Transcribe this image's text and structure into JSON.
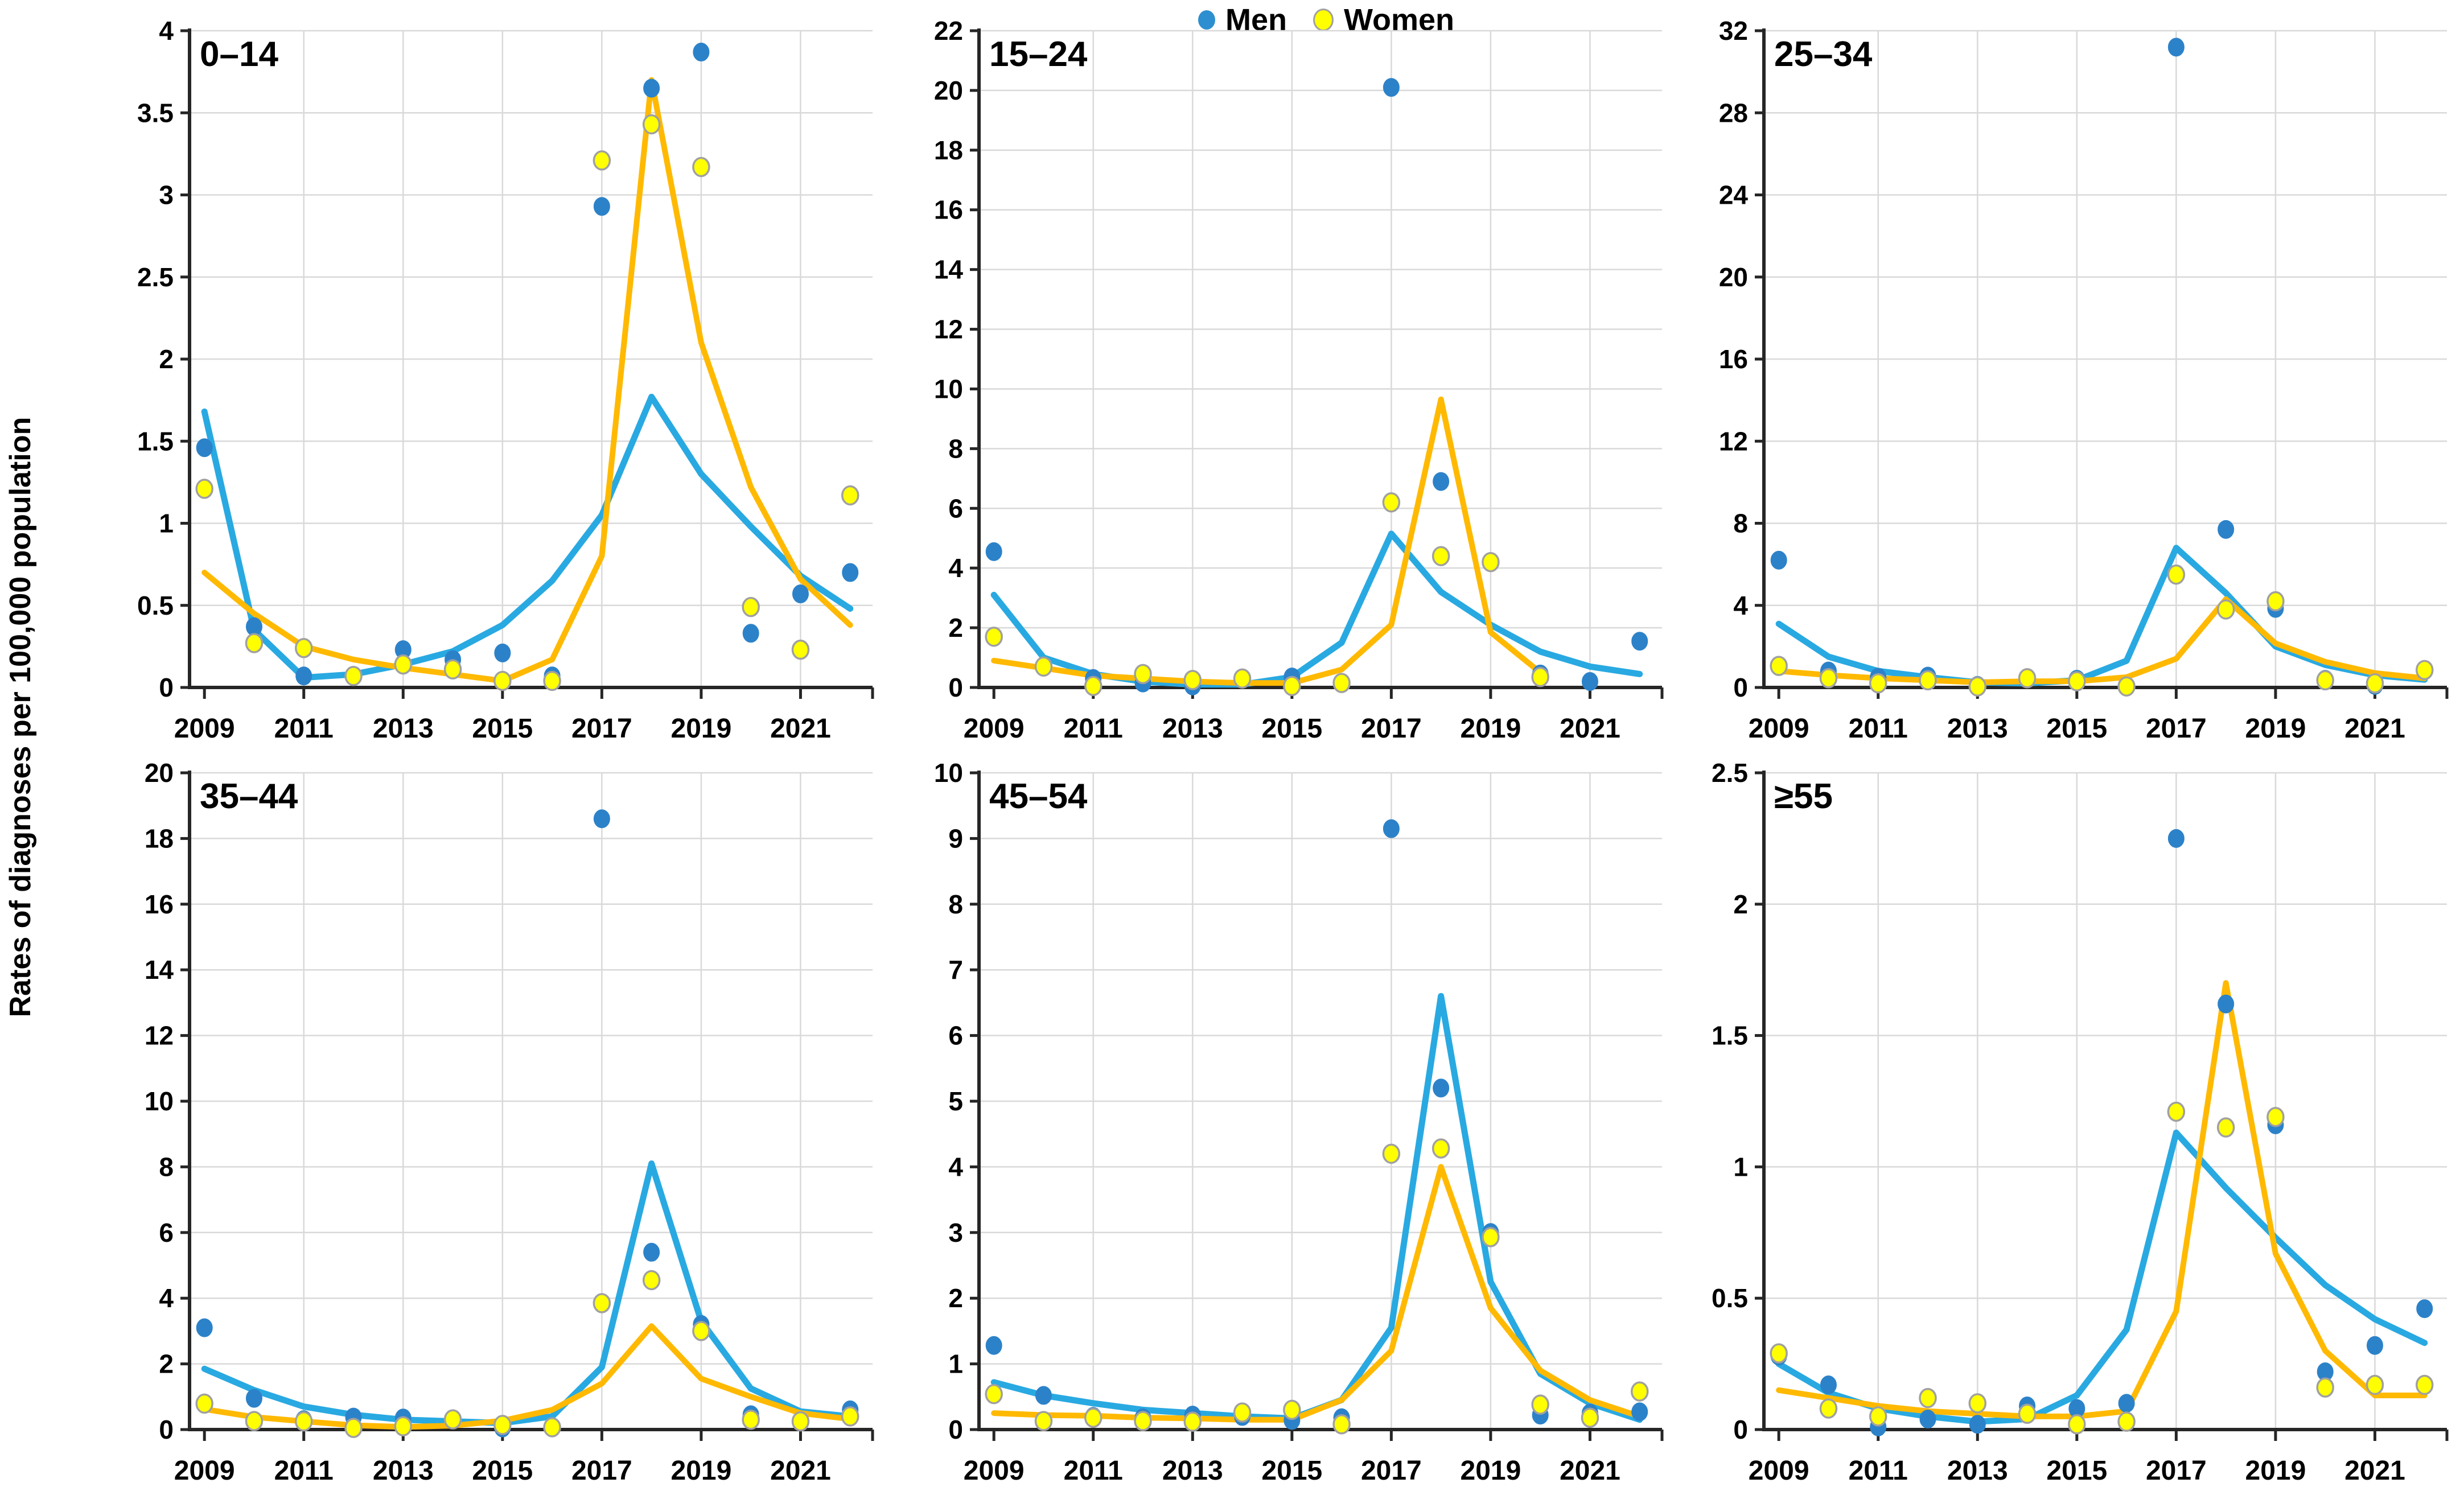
{
  "figure": {
    "ylabel": "Rates of diagnoses per 100,000 population",
    "legend": {
      "men_label": "Men",
      "women_label": "Women"
    },
    "colors": {
      "men_line": "#29A9E1",
      "men_dot": "#2C82C9",
      "women_line": "#FFB900",
      "women_dot": "#FFFF00",
      "women_dot_stroke": "#A0A0A0",
      "grid": "#D9D9D9",
      "axis": "#262626",
      "text": "#000000"
    }
  },
  "chart_data": [
    {
      "type": "scatter",
      "title": "0–14",
      "years": [
        2009,
        2010,
        2011,
        2012,
        2013,
        2014,
        2015,
        2016,
        2017,
        2018,
        2019,
        2020,
        2021,
        2022
      ],
      "xtick_labels": [
        "2009",
        "2011",
        "2013",
        "2015",
        "2017",
        "2019",
        "2021"
      ],
      "ylim": [
        0,
        4
      ],
      "ytick_step": 0.5,
      "series": [
        {
          "name": "Men",
          "role": "points",
          "values": [
            1.46,
            0.37,
            0.07,
            0.07,
            0.23,
            0.17,
            0.21,
            0.07,
            2.93,
            3.65,
            3.87,
            0.33,
            0.57,
            0.7
          ]
        },
        {
          "name": "Women",
          "role": "points",
          "values": [
            1.21,
            0.27,
            0.24,
            0.07,
            0.14,
            0.11,
            0.04,
            0.04,
            3.21,
            3.43,
            3.17,
            0.49,
            0.23,
            1.17
          ]
        },
        {
          "name": "Men fitted",
          "role": "line",
          "values": [
            1.68,
            0.35,
            0.06,
            0.08,
            0.14,
            0.22,
            0.38,
            0.65,
            1.05,
            1.77,
            1.3,
            0.98,
            0.68,
            0.48
          ]
        },
        {
          "name": "Women fitted",
          "role": "line",
          "values": [
            0.7,
            0.45,
            0.25,
            0.17,
            0.12,
            0.08,
            0.04,
            0.17,
            0.8,
            3.7,
            2.1,
            1.22,
            0.66,
            0.38
          ]
        }
      ]
    },
    {
      "type": "scatter",
      "title": "15–24",
      "years": [
        2009,
        2010,
        2011,
        2012,
        2013,
        2014,
        2015,
        2016,
        2017,
        2018,
        2019,
        2020,
        2021,
        2022
      ],
      "xtick_labels": [
        "2009",
        "2011",
        "2013",
        "2015",
        "2017",
        "2019",
        "2021"
      ],
      "ylim": [
        0,
        22
      ],
      "ytick_step": 2,
      "series": [
        {
          "name": "Men",
          "role": "points",
          "values": [
            4.55,
            0.7,
            0.3,
            0.15,
            0.05,
            0.3,
            0.35,
            0.15,
            20.1,
            6.9,
            4.2,
            0.45,
            0.2,
            1.55
          ]
        },
        {
          "name": "Women",
          "role": "points",
          "values": [
            1.7,
            0.7,
            0.05,
            0.45,
            0.25,
            0.3,
            0.05,
            0.15,
            6.2,
            4.4,
            4.2,
            0.35,
            null,
            null
          ]
        },
        {
          "name": "Men fitted",
          "role": "line",
          "values": [
            3.1,
            1.0,
            0.45,
            0.2,
            0.1,
            0.1,
            0.35,
            1.5,
            5.15,
            3.2,
            2.1,
            1.2,
            0.7,
            0.45
          ]
        },
        {
          "name": "Women fitted",
          "role": "line",
          "values": [
            0.9,
            0.65,
            0.4,
            0.3,
            0.2,
            0.15,
            0.15,
            0.6,
            2.1,
            9.65,
            1.85,
            0.5,
            null,
            null
          ]
        }
      ]
    },
    {
      "type": "scatter",
      "title": "25–34",
      "years": [
        2009,
        2010,
        2011,
        2012,
        2013,
        2014,
        2015,
        2016,
        2017,
        2018,
        2019,
        2020,
        2021,
        2022
      ],
      "xtick_labels": [
        "2009",
        "2011",
        "2013",
        "2015",
        "2017",
        "2019",
        "2021"
      ],
      "ylim": [
        0,
        32
      ],
      "ytick_step": 4,
      "series": [
        {
          "name": "Men",
          "role": "points",
          "values": [
            6.2,
            0.8,
            0.5,
            0.55,
            0.1,
            0.45,
            0.4,
            0.05,
            31.2,
            7.7,
            3.85,
            0.4,
            0.1,
            0.85
          ]
        },
        {
          "name": "Women",
          "role": "points",
          "values": [
            1.05,
            0.45,
            0.2,
            0.35,
            0.05,
            0.45,
            0.3,
            0.05,
            5.5,
            3.8,
            4.2,
            0.35,
            0.2,
            0.85
          ]
        },
        {
          "name": "Men fitted",
          "role": "line",
          "values": [
            3.1,
            1.5,
            0.8,
            0.5,
            0.25,
            0.2,
            0.35,
            1.3,
            6.8,
            4.6,
            2.0,
            1.1,
            0.6,
            0.38
          ]
        },
        {
          "name": "Women fitted",
          "role": "line",
          "values": [
            0.8,
            0.6,
            0.45,
            0.35,
            0.25,
            0.3,
            0.3,
            0.5,
            1.4,
            4.3,
            2.15,
            1.25,
            0.7,
            0.45
          ]
        }
      ]
    },
    {
      "type": "scatter",
      "title": "35–44",
      "years": [
        2009,
        2010,
        2011,
        2012,
        2013,
        2014,
        2015,
        2016,
        2017,
        2018,
        2019,
        2020,
        2021,
        2022
      ],
      "xtick_labels": [
        "2009",
        "2011",
        "2013",
        "2015",
        "2017",
        "2019",
        "2021"
      ],
      "ylim": [
        0,
        20
      ],
      "ytick_step": 2,
      "series": [
        {
          "name": "Men",
          "role": "points",
          "values": [
            3.1,
            0.95,
            0.3,
            0.38,
            0.35,
            0.31,
            0.05,
            0.05,
            18.6,
            5.4,
            3.2,
            0.45,
            0.25,
            0.6
          ]
        },
        {
          "name": "Women",
          "role": "points",
          "values": [
            0.79,
            0.26,
            0.25,
            0.05,
            0.1,
            0.31,
            0.14,
            0.07,
            3.85,
            4.55,
            3.0,
            0.3,
            0.25,
            0.4
          ]
        },
        {
          "name": "Men fitted",
          "role": "line",
          "values": [
            1.85,
            1.2,
            0.7,
            0.45,
            0.3,
            0.25,
            0.2,
            0.4,
            1.9,
            8.1,
            3.3,
            1.25,
            0.55,
            0.4
          ]
        },
        {
          "name": "Women fitted",
          "role": "line",
          "values": [
            0.62,
            0.38,
            0.25,
            0.13,
            0.08,
            0.12,
            0.27,
            0.6,
            1.4,
            3.15,
            1.55,
            1.0,
            0.5,
            0.32
          ]
        }
      ]
    },
    {
      "type": "scatter",
      "title": "45–54",
      "years": [
        2009,
        2010,
        2011,
        2012,
        2013,
        2014,
        2015,
        2016,
        2017,
        2018,
        2019,
        2020,
        2021,
        2022
      ],
      "xtick_labels": [
        "2009",
        "2011",
        "2013",
        "2015",
        "2017",
        "2019",
        "2021"
      ],
      "ylim": [
        0,
        10
      ],
      "ytick_step": 1,
      "series": [
        {
          "name": "Men",
          "role": "points",
          "values": [
            1.28,
            0.52,
            0.2,
            0.18,
            0.22,
            0.2,
            0.14,
            0.18,
            9.15,
            5.2,
            3.0,
            0.22,
            0.25,
            0.27
          ]
        },
        {
          "name": "Women",
          "role": "points",
          "values": [
            0.54,
            0.13,
            0.18,
            0.13,
            0.12,
            0.26,
            0.3,
            0.08,
            4.2,
            4.28,
            2.93,
            0.38,
            0.18,
            0.58
          ]
        },
        {
          "name": "Men fitted",
          "role": "line",
          "values": [
            0.72,
            0.52,
            0.4,
            0.3,
            0.25,
            0.2,
            0.17,
            0.45,
            1.55,
            6.6,
            2.25,
            0.85,
            0.4,
            0.15
          ]
        },
        {
          "name": "Women fitted",
          "role": "line",
          "values": [
            0.25,
            0.22,
            0.21,
            0.18,
            0.17,
            0.15,
            0.15,
            0.45,
            1.2,
            4.0,
            1.85,
            0.9,
            0.45,
            0.2
          ]
        }
      ]
    },
    {
      "type": "scatter",
      "title": "≥55",
      "years": [
        2009,
        2010,
        2011,
        2012,
        2013,
        2014,
        2015,
        2016,
        2017,
        2018,
        2019,
        2020,
        2021,
        2022
      ],
      "xtick_labels": [
        "2009",
        "2011",
        "2013",
        "2015",
        "2017",
        "2019",
        "2021"
      ],
      "ylim": [
        0,
        2.5
      ],
      "ytick_step": 0.5,
      "series": [
        {
          "name": "Men",
          "role": "points",
          "values": [
            0.28,
            0.17,
            0.01,
            0.04,
            0.02,
            0.09,
            0.08,
            0.1,
            2.25,
            1.62,
            1.16,
            0.22,
            0.32,
            0.46
          ]
        },
        {
          "name": "Women",
          "role": "points",
          "values": [
            0.29,
            0.08,
            0.05,
            0.12,
            0.1,
            0.06,
            0.02,
            0.03,
            1.21,
            1.15,
            1.19,
            0.16,
            0.17,
            0.17
          ]
        },
        {
          "name": "Men fitted",
          "role": "line",
          "values": [
            0.25,
            0.14,
            0.08,
            0.05,
            0.03,
            0.04,
            0.13,
            0.38,
            1.13,
            0.92,
            0.73,
            0.55,
            0.42,
            0.33
          ]
        },
        {
          "name": "Women fitted",
          "role": "line",
          "values": [
            0.15,
            0.12,
            0.09,
            0.07,
            0.06,
            0.05,
            0.05,
            0.07,
            0.45,
            1.7,
            0.67,
            0.3,
            0.13,
            0.13
          ]
        }
      ]
    }
  ]
}
